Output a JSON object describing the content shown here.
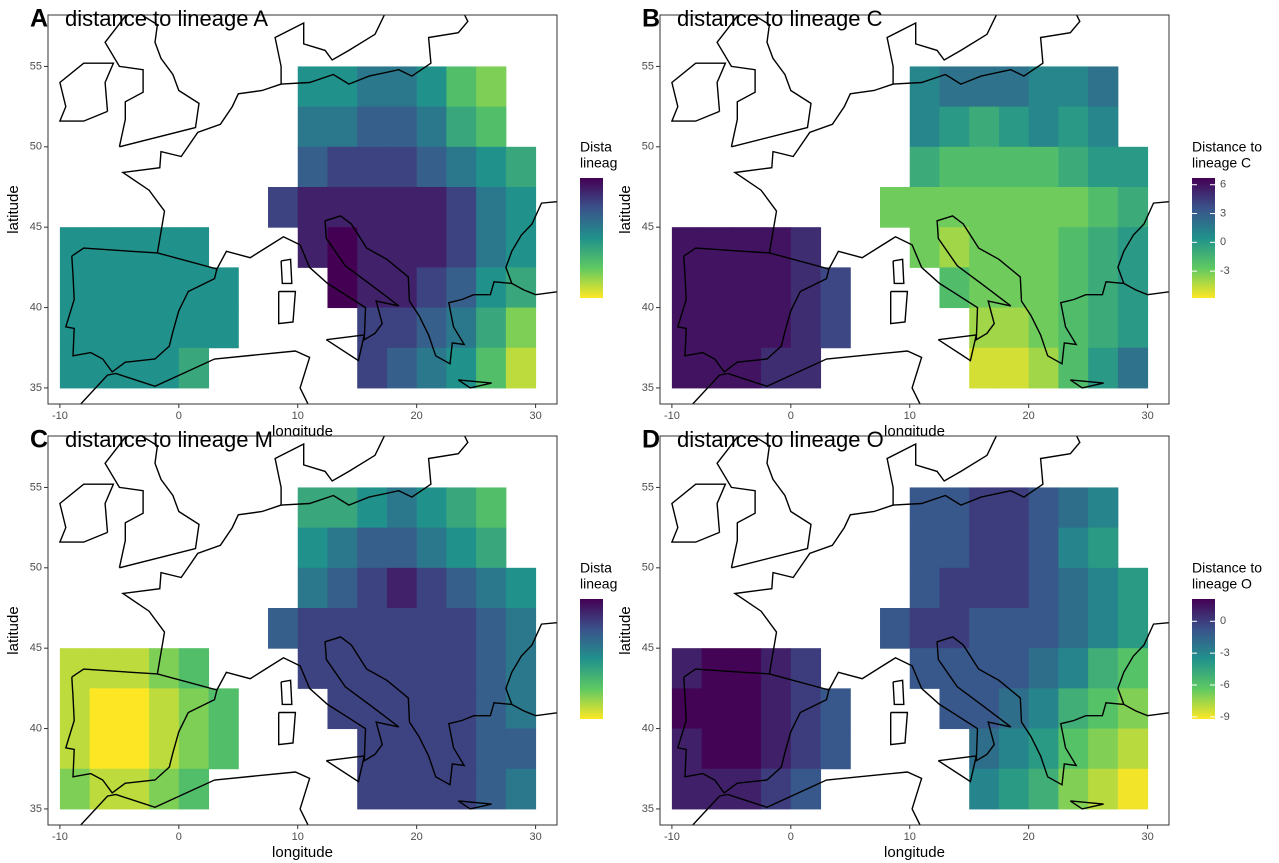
{
  "chart_data": [
    {
      "type": "heatmap",
      "panel_label": "A",
      "title": "distance to lineage A",
      "x_label": "longitude",
      "y_label": "latitude",
      "legend_title": [
        "Dista",
        "lineag"
      ],
      "clim": [
        0,
        10
      ],
      "xlim": [
        -11,
        31.8
      ],
      "ylim": [
        34,
        58.2
      ],
      "xticks": [
        -10,
        0,
        10,
        20,
        30
      ],
      "yticks": [
        35,
        40,
        45,
        50,
        55
      ],
      "x": [
        -8.75,
        -6.25,
        -3.75,
        -1.25,
        1.25,
        3.75,
        6.25,
        8.75,
        11.25,
        13.75,
        16.25,
        18.75,
        21.25,
        23.75,
        26.25,
        28.75
      ],
      "y": [
        53.75,
        51.25,
        48.75,
        46.25,
        43.75,
        41.25,
        38.75,
        36.25
      ],
      "z": [
        [
          null,
          null,
          null,
          null,
          null,
          null,
          null,
          null,
          5,
          5,
          6,
          6,
          5,
          3,
          2,
          null
        ],
        [
          null,
          null,
          null,
          null,
          null,
          null,
          null,
          null,
          6,
          6,
          7,
          7,
          6,
          4,
          3,
          null
        ],
        [
          null,
          null,
          null,
          null,
          null,
          null,
          null,
          null,
          7,
          8,
          8,
          8,
          7,
          6,
          5,
          4
        ],
        [
          null,
          null,
          null,
          null,
          null,
          null,
          null,
          8,
          9,
          9,
          9,
          9,
          9,
          8,
          6,
          5
        ],
        [
          5,
          5,
          5,
          5,
          5,
          null,
          null,
          null,
          9,
          10,
          9,
          9,
          9,
          8,
          6,
          5
        ],
        [
          5,
          5,
          5,
          5,
          5,
          5,
          null,
          null,
          null,
          10,
          9,
          9,
          8,
          7,
          5,
          4
        ],
        [
          5,
          5,
          5,
          5,
          5,
          5,
          null,
          null,
          null,
          null,
          8,
          8,
          7,
          6,
          4,
          2
        ],
        [
          5,
          5,
          5,
          5,
          4,
          null,
          null,
          null,
          null,
          null,
          8,
          7,
          6,
          5,
          3,
          1
        ]
      ]
    },
    {
      "type": "heatmap",
      "panel_label": "B",
      "title": "distance to lineage C",
      "x_label": "longitude",
      "y_label": "latitude",
      "legend_title": [
        "Distance to",
        "lineage C"
      ],
      "clim": [
        -5.8,
        6.7
      ],
      "colorbar_ticks": [
        6,
        3,
        0,
        -3
      ],
      "xlim": [
        -11,
        31.8
      ],
      "ylim": [
        34,
        58.2
      ],
      "xticks": [
        -10,
        0,
        10,
        20,
        30
      ],
      "yticks": [
        35,
        40,
        45,
        50,
        55
      ],
      "x": [
        -8.75,
        -6.25,
        -3.75,
        -1.25,
        1.25,
        3.75,
        6.25,
        8.75,
        11.25,
        13.75,
        16.25,
        18.75,
        21.25,
        23.75,
        26.25,
        28.75
      ],
      "y": [
        53.75,
        51.25,
        48.75,
        46.25,
        43.75,
        41.25,
        38.75,
        36.25
      ],
      "z": [
        [
          null,
          null,
          null,
          null,
          null,
          null,
          null,
          null,
          1,
          2,
          2,
          2,
          1,
          1,
          2,
          null
        ],
        [
          null,
          null,
          null,
          null,
          null,
          null,
          null,
          null,
          1,
          0,
          -1,
          0,
          1,
          0,
          1,
          null
        ],
        [
          null,
          null,
          null,
          null,
          null,
          null,
          null,
          null,
          -1,
          -2,
          -2,
          -2,
          -2,
          -1,
          0,
          0
        ],
        [
          null,
          null,
          null,
          null,
          null,
          null,
          null,
          -3,
          -3,
          -3,
          -3,
          -3,
          -3,
          -3,
          -2,
          -1
        ],
        [
          6,
          6,
          6,
          6,
          5,
          null,
          null,
          null,
          -3,
          -4,
          -3,
          -3,
          -3,
          -2,
          -1,
          0
        ],
        [
          6,
          6,
          6,
          6,
          5,
          4,
          null,
          null,
          null,
          -2,
          -3,
          -3,
          -3,
          -2,
          -1,
          0
        ],
        [
          6,
          6,
          6,
          6,
          5,
          4,
          null,
          null,
          null,
          null,
          -4,
          -4,
          -3,
          -2,
          -1,
          0
        ],
        [
          6,
          6,
          6,
          5,
          5,
          null,
          null,
          null,
          null,
          null,
          -5,
          -5,
          -4,
          -2,
          0,
          2
        ]
      ]
    },
    {
      "type": "heatmap",
      "panel_label": "C",
      "title": "distance to lineage M",
      "x_label": "longitude",
      "y_label": "latitude",
      "legend_title": [
        "Dista",
        "lineag"
      ],
      "clim": [
        0,
        10
      ],
      "xlim": [
        -11,
        31.8
      ],
      "ylim": [
        34,
        58.2
      ],
      "xticks": [
        -10,
        0,
        10,
        20,
        30
      ],
      "yticks": [
        35,
        40,
        45,
        50,
        55
      ],
      "x": [
        -8.75,
        -6.25,
        -3.75,
        -1.25,
        1.25,
        3.75,
        6.25,
        8.75,
        11.25,
        13.75,
        16.25,
        18.75,
        21.25,
        23.75,
        26.25,
        28.75
      ],
      "y": [
        53.75,
        51.25,
        48.75,
        46.25,
        43.75,
        41.25,
        38.75,
        36.25
      ],
      "z": [
        [
          null,
          null,
          null,
          null,
          null,
          null,
          null,
          null,
          4,
          4,
          5,
          6,
          5,
          4,
          3,
          null
        ],
        [
          null,
          null,
          null,
          null,
          null,
          null,
          null,
          null,
          5,
          6,
          7,
          7,
          6,
          5,
          4,
          null
        ],
        [
          null,
          null,
          null,
          null,
          null,
          null,
          null,
          null,
          6,
          7,
          8,
          9,
          8,
          7,
          6,
          5
        ],
        [
          null,
          null,
          null,
          null,
          null,
          null,
          null,
          7,
          8,
          8,
          8,
          8,
          8,
          8,
          7,
          6
        ],
        [
          1,
          1,
          1,
          2,
          3,
          null,
          null,
          null,
          8,
          8,
          8,
          8,
          8,
          8,
          7,
          6
        ],
        [
          1,
          0,
          0,
          1,
          2,
          3,
          null,
          null,
          null,
          8,
          8,
          8,
          8,
          8,
          7,
          6
        ],
        [
          1,
          0,
          0,
          1,
          2,
          3,
          null,
          null,
          null,
          null,
          8,
          8,
          8,
          8,
          7,
          7
        ],
        [
          2,
          1,
          1,
          2,
          3,
          null,
          null,
          null,
          null,
          null,
          8,
          8,
          8,
          8,
          7,
          6
        ]
      ]
    },
    {
      "type": "heatmap",
      "panel_label": "D",
      "title": "distance to lineage O",
      "x_label": "longitude",
      "y_label": "latitude",
      "legend_title": [
        "Distance to",
        "lineage O"
      ],
      "clim": [
        -9.2,
        2.1
      ],
      "colorbar_ticks": [
        0,
        -3,
        -6,
        -9
      ],
      "xlim": [
        -11,
        31.8
      ],
      "ylim": [
        34,
        58.2
      ],
      "xticks": [
        -10,
        0,
        10,
        20,
        30
      ],
      "yticks": [
        35,
        40,
        45,
        50,
        55
      ],
      "x": [
        -8.75,
        -6.25,
        -3.75,
        -1.25,
        1.25,
        3.75,
        6.25,
        8.75,
        11.25,
        13.75,
        16.25,
        18.75,
        21.25,
        23.75,
        26.25,
        28.75
      ],
      "y": [
        53.75,
        51.25,
        48.75,
        46.25,
        43.75,
        41.25,
        38.75,
        36.25
      ],
      "z": [
        [
          null,
          null,
          null,
          null,
          null,
          null,
          null,
          null,
          -1,
          -1,
          0,
          0,
          -1,
          -2,
          -3,
          null
        ],
        [
          null,
          null,
          null,
          null,
          null,
          null,
          null,
          null,
          -1,
          -1,
          0,
          0,
          -1,
          -3,
          -4,
          null
        ],
        [
          null,
          null,
          null,
          null,
          null,
          null,
          null,
          null,
          -1,
          0,
          0,
          0,
          -1,
          -2,
          -3,
          -4
        ],
        [
          null,
          null,
          null,
          null,
          null,
          null,
          null,
          -1,
          0,
          0,
          -1,
          -1,
          -1,
          -2,
          -3,
          -4
        ],
        [
          1,
          2,
          2,
          1,
          0,
          null,
          null,
          null,
          -1,
          -1,
          -1,
          -1,
          -2,
          -3,
          -5,
          -6
        ],
        [
          2,
          2,
          2,
          1,
          0,
          -1,
          null,
          null,
          null,
          -1,
          -1,
          -2,
          -3,
          -5,
          -6,
          -7
        ],
        [
          1,
          2,
          2,
          1,
          0,
          -1,
          null,
          null,
          null,
          null,
          -2,
          -3,
          -4,
          -6,
          -7,
          -8
        ],
        [
          1,
          1,
          1,
          0,
          -1,
          null,
          null,
          null,
          null,
          null,
          -3,
          -4,
          -5,
          -7,
          -8,
          -9
        ]
      ]
    }
  ]
}
